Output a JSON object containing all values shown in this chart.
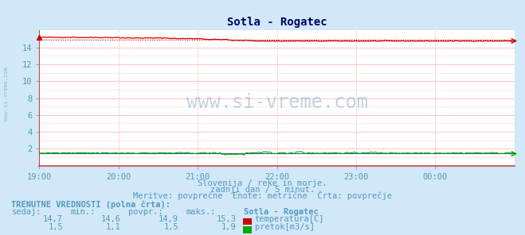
{
  "title": "Sotla - Rogatec",
  "bg_color": "#d0e8f8",
  "plot_bg_color": "#ffffff",
  "grid_color_h": "#ffbbbb",
  "grid_color_v": "#ffbbbb",
  "grid_color_v_minor": "#ffd0d0",
  "text_color": "#5599bb",
  "title_color": "#000066",
  "xlabel_ticks": [
    "19:00",
    "20:00",
    "21:00",
    "22:00",
    "23:00",
    "00:00"
  ],
  "ylim": [
    0,
    16
  ],
  "ytick_vals": [
    2,
    4,
    6,
    8,
    10,
    12,
    14
  ],
  "xlim_min": 0,
  "xlim_max": 288,
  "tick_positions": [
    0,
    48,
    96,
    144,
    192,
    240
  ],
  "temp_color": "#cc0000",
  "flow_color": "#00aa00",
  "blue_color": "#3333cc",
  "watermark": "www.si-vreme.com",
  "watermark_color": "#6699bb",
  "watermark_alpha": 0.4,
  "side_text": "www.si-vreme.com",
  "subtitle1": "Slovenija / reke in morje.",
  "subtitle2": "zadnji dan / 5 minut.",
  "subtitle3": "Meritve: povprečne  Enote: metrične  Črta: povprečje",
  "table_header": "TRENUTNE VREDNOSTI (polna črta):",
  "col_headers": [
    "sedaj:",
    "min.:",
    "povpr.:",
    "maks.:",
    "Sotla - Rogatec"
  ],
  "temp_vals": [
    "14,7",
    "14,6",
    "14,9",
    "15,3"
  ],
  "flow_vals": [
    "1,5",
    "1,1",
    "1,5",
    "1,9"
  ],
  "label_temp": "temperatura[C]",
  "label_flow": "pretok[m3/s]",
  "temp_avg": 14.9,
  "flow_avg": 1.5,
  "n_points": 288
}
